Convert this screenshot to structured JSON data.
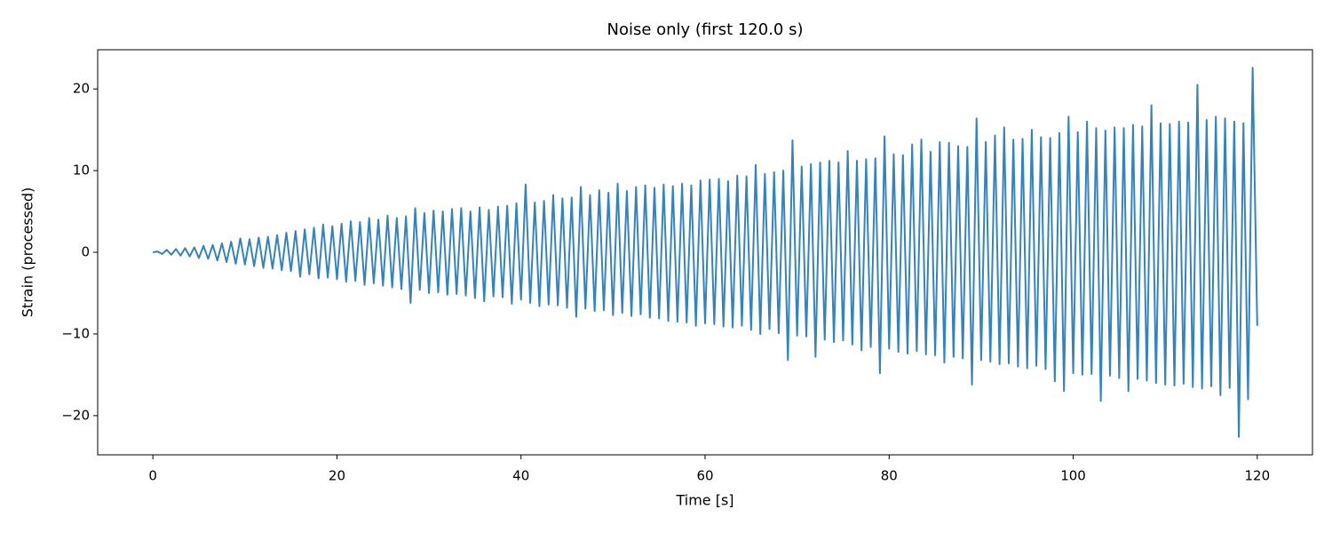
{
  "chart_data": {
    "type": "line",
    "title": "Noise only (first 120.0 s)",
    "x_label": "Time [s]",
    "y_label": "Strain (processed)",
    "color": "#3583bc",
    "xlim": [
      -6,
      126
    ],
    "ylim": [
      -24.8,
      24.8
    ],
    "xticks": [
      0,
      20,
      40,
      60,
      80,
      100,
      120
    ],
    "yticks": [
      {
        "value": -20,
        "label": "−20"
      },
      {
        "value": -10,
        "label": "−10"
      },
      0,
      10,
      20
    ],
    "x": [
      0,
      0.5,
      1,
      1.5,
      2,
      2.5,
      3,
      3.5,
      4,
      4.5,
      5,
      5.5,
      6,
      6.5,
      7,
      7.5,
      8,
      8.5,
      9,
      9.5,
      10,
      10.5,
      11,
      11.5,
      12,
      12.5,
      13,
      13.5,
      14,
      14.5,
      15,
      15.5,
      16,
      16.5,
      17,
      17.5,
      18,
      18.5,
      19,
      19.5,
      20,
      20.5,
      21,
      21.5,
      22,
      22.5,
      23,
      23.5,
      24,
      24.5,
      25,
      25.5,
      26,
      26.5,
      27,
      27.5,
      28,
      28.5,
      29,
      29.5,
      30,
      30.5,
      31,
      31.5,
      32,
      32.5,
      33,
      33.5,
      34,
      34.5,
      35,
      35.5,
      36,
      36.5,
      37,
      37.5,
      38,
      38.5,
      39,
      39.5,
      40,
      40.5,
      41,
      41.5,
      42,
      42.5,
      43,
      43.5,
      44,
      44.5,
      45,
      45.5,
      46,
      46.5,
      47,
      47.5,
      48,
      48.5,
      49,
      49.5,
      50,
      50.5,
      51,
      51.5,
      52,
      52.5,
      53,
      53.5,
      54,
      54.5,
      55,
      55.5,
      56,
      56.5,
      57,
      57.5,
      58,
      58.5,
      59,
      59.5,
      60,
      60.5,
      61,
      61.5,
      62,
      62.5,
      63,
      63.5,
      64,
      64.5,
      65,
      65.5,
      66,
      66.5,
      67,
      67.5,
      68,
      68.5,
      69,
      69.5,
      70,
      70.5,
      71,
      71.5,
      72,
      72.5,
      73,
      73.5,
      74,
      74.5,
      75,
      75.5,
      76,
      76.5,
      77,
      77.5,
      78,
      78.5,
      79,
      79.5,
      80,
      80.5,
      81,
      81.5,
      82,
      82.5,
      83,
      83.5,
      84,
      84.5,
      85,
      85.5,
      86,
      86.5,
      87,
      87.5,
      88,
      88.5,
      89,
      89.5,
      90,
      90.5,
      91,
      91.5,
      92,
      92.5,
      93,
      93.5,
      94,
      94.5,
      95,
      95.5,
      96,
      96.5,
      97,
      97.5,
      98,
      98.5,
      99,
      99.5,
      100,
      100.5,
      101,
      101.5,
      102,
      102.5,
      103,
      103.5,
      104,
      104.5,
      105,
      105.5,
      106,
      106.5,
      107,
      107.5,
      108,
      108.5,
      109,
      109.5,
      110,
      110.5,
      111,
      111.5,
      112,
      112.5,
      113,
      113.5,
      114,
      114.5,
      115,
      115.5,
      116,
      116.5,
      117,
      117.5,
      118,
      118.5,
      119,
      119.5,
      120
    ],
    "values": [
      0,
      0.1,
      -0.2,
      0.3,
      -0.3,
      0.4,
      -0.4,
      0.5,
      -0.5,
      0.6,
      -0.7,
      0.8,
      -0.8,
      0.9,
      -1.0,
      1.1,
      -1.2,
      1.3,
      -1.4,
      1.7,
      -1.5,
      1.6,
      -1.7,
      1.8,
      -1.9,
      1.9,
      -2.0,
      2.1,
      -2.2,
      2.4,
      -2.3,
      2.6,
      -3.0,
      2.8,
      -2.7,
      3.0,
      -3.2,
      3.4,
      -3.1,
      3.2,
      -3.3,
      3.5,
      -3.6,
      3.8,
      -3.5,
      3.7,
      -4.0,
      4.2,
      -3.8,
      4.0,
      -4.1,
      4.5,
      -4.3,
      4.2,
      -4.5,
      4.4,
      -6.2,
      5.4,
      -4.6,
      4.8,
      -5.0,
      5.1,
      -4.9,
      5.0,
      -5.2,
      5.3,
      -5.1,
      5.4,
      -5.3,
      5.0,
      -5.6,
      5.5,
      -6.0,
      5.2,
      -5.4,
      5.6,
      -5.5,
      5.7,
      -6.3,
      6.0,
      -5.8,
      8.3,
      -6.2,
      6.1,
      -6.6,
      6.3,
      -6.4,
      7.0,
      -6.5,
      6.6,
      -6.8,
      6.7,
      -7.9,
      8.0,
      -6.9,
      7.0,
      -7.2,
      7.6,
      -7.1,
      7.3,
      -7.7,
      8.4,
      -7.4,
      7.5,
      -7.8,
      8.0,
      -7.6,
      8.2,
      -8.0,
      7.9,
      -8.1,
      8.3,
      -8.4,
      8.1,
      -8.5,
      8.4,
      -8.6,
      8.2,
      -9.0,
      8.8,
      -8.7,
      8.9,
      -8.8,
      9.0,
      -9.1,
      8.7,
      -9.2,
      9.4,
      -9.0,
      9.3,
      -9.5,
      10.7,
      -10.0,
      9.6,
      -9.4,
      9.8,
      -9.9,
      10.0,
      -13.2,
      13.7,
      -10.2,
      10.5,
      -10.3,
      10.8,
      -12.8,
      11.0,
      -10.7,
      11.2,
      -11.0,
      11.0,
      -10.8,
      12.4,
      -11.3,
      11.2,
      -12.0,
      11.4,
      -11.6,
      11.5,
      -14.8,
      14.2,
      -11.8,
      12.0,
      -12.2,
      11.9,
      -12.4,
      13.2,
      -12.1,
      13.8,
      -12.5,
      12.3,
      -12.6,
      13.5,
      -13.5,
      13.4,
      -12.8,
      13.0,
      -13.0,
      12.9,
      -16.2,
      16.4,
      -13.2,
      13.5,
      -13.4,
      14.3,
      -13.7,
      15.3,
      -13.6,
      13.8,
      -14.0,
      13.9,
      -14.2,
      15.0,
      -13.9,
      14.1,
      -14.3,
      14.0,
      -15.8,
      14.6,
      -17.0,
      16.6,
      -14.8,
      14.7,
      -15.0,
      16.0,
      -14.9,
      15.2,
      -18.2,
      14.9,
      -15.1,
      15.3,
      -15.4,
      15.2,
      -17.0,
      15.6,
      -15.5,
      15.4,
      -15.7,
      18.0,
      -16.0,
      15.8,
      -16.2,
      15.7,
      -16.3,
      16.0,
      -16.1,
      15.9,
      -16.5,
      20.5,
      -16.7,
      16.2,
      -16.4,
      16.6,
      -17.5,
      16.4,
      -16.6,
      16.0,
      -22.6,
      15.8,
      -18.0,
      22.6,
      -9.0
    ]
  }
}
